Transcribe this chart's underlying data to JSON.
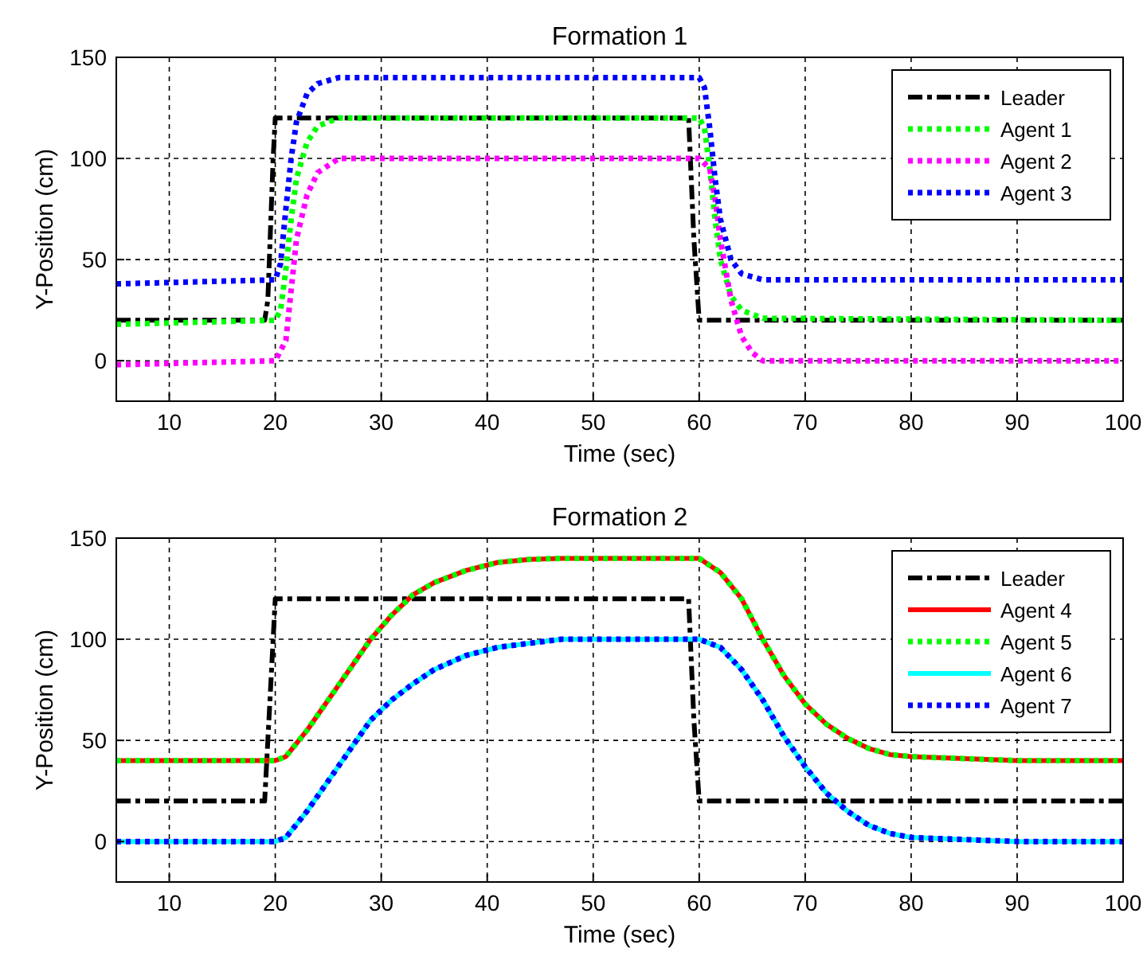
{
  "chart_data": [
    {
      "type": "line",
      "title": "Formation 1",
      "xlabel": "Time (sec)",
      "ylabel": "Y-Position (cm)",
      "xlim": [
        5,
        100
      ],
      "ylim": [
        -20,
        150
      ],
      "xticks": [
        10,
        20,
        30,
        40,
        50,
        60,
        70,
        80,
        90,
        100
      ],
      "yticks": [
        0,
        50,
        100,
        150
      ],
      "grid": true,
      "legend": "top right",
      "series": [
        {
          "name": "Leader",
          "color": "#000000",
          "line_style": "dashdot",
          "x": [
            5,
            19,
            19.3,
            19.8,
            20,
            59,
            59.5,
            60,
            100
          ],
          "values": [
            20,
            20,
            30,
            100,
            120,
            120,
            60,
            20,
            20
          ]
        },
        {
          "name": "Agent 1",
          "color": "#00ff00",
          "line_style": "dotted",
          "x": [
            5,
            20,
            20.5,
            21,
            21.5,
            22,
            23,
            24,
            26,
            60,
            60.5,
            61,
            61.5,
            62,
            63,
            64,
            66,
            100
          ],
          "values": [
            18,
            20,
            25,
            45,
            70,
            90,
            108,
            116,
            120,
            120,
            115,
            95,
            70,
            50,
            32,
            25,
            21,
            20
          ]
        },
        {
          "name": "Agent 2",
          "color": "#ff00ff",
          "line_style": "dotted",
          "x": [
            5,
            20,
            21,
            21.5,
            22,
            23,
            24,
            26,
            60,
            61,
            61.5,
            62,
            63,
            64,
            65,
            66,
            100
          ],
          "values": [
            -2,
            0,
            10,
            35,
            60,
            82,
            93,
            100,
            100,
            95,
            80,
            60,
            30,
            12,
            4,
            0,
            0
          ]
        },
        {
          "name": "Agent 3",
          "color": "#0000ff",
          "line_style": "dotted",
          "x": [
            5,
            20,
            20.5,
            21,
            21.5,
            22,
            23,
            24,
            26,
            60,
            60.5,
            61,
            61.5,
            62,
            63,
            64,
            66,
            100
          ],
          "values": [
            38,
            40,
            48,
            75,
            100,
            118,
            132,
            137,
            140,
            140,
            135,
            115,
            90,
            70,
            50,
            43,
            40,
            40
          ]
        }
      ]
    },
    {
      "type": "line",
      "title": "Formation 2",
      "xlabel": "Time (sec)",
      "ylabel": "Y-Position (cm)",
      "xlim": [
        5,
        100
      ],
      "ylim": [
        -20,
        150
      ],
      "xticks": [
        10,
        20,
        30,
        40,
        50,
        60,
        70,
        80,
        90,
        100
      ],
      "yticks": [
        0,
        50,
        100,
        150
      ],
      "grid": true,
      "legend": "top right",
      "series": [
        {
          "name": "Leader",
          "color": "#000000",
          "line_style": "dashdot",
          "x": [
            5,
            19,
            19.3,
            19.8,
            20,
            59,
            59.5,
            60,
            100
          ],
          "values": [
            20,
            20,
            50,
            100,
            120,
            120,
            60,
            20,
            20
          ]
        },
        {
          "name": "Agent 4",
          "color": "#ff0000",
          "line_style": "solid",
          "x": [
            5,
            20,
            21,
            23,
            25,
            27,
            29,
            31,
            33,
            35,
            38,
            41,
            44,
            47,
            60,
            62,
            64,
            66,
            68,
            70,
            72,
            74,
            76,
            78,
            80,
            85,
            90,
            100
          ],
          "values": [
            40,
            40,
            42,
            55,
            70,
            85,
            100,
            112,
            122,
            128,
            134,
            138,
            139.5,
            140,
            140,
            133,
            120,
            100,
            82,
            68,
            58,
            51,
            46,
            43,
            42,
            41,
            40,
            40
          ]
        },
        {
          "name": "Agent 5",
          "color": "#00ff00",
          "line_style": "dotted",
          "x": [
            5,
            20,
            21,
            23,
            25,
            27,
            29,
            31,
            33,
            35,
            38,
            41,
            44,
            47,
            60,
            62,
            64,
            66,
            68,
            70,
            72,
            74,
            76,
            78,
            80,
            85,
            90,
            100
          ],
          "values": [
            40,
            40,
            42,
            55,
            70,
            85,
            100,
            112,
            122,
            128,
            134,
            138,
            139.5,
            140,
            140,
            133,
            120,
            100,
            82,
            68,
            58,
            51,
            46,
            43,
            42,
            41,
            40,
            40
          ]
        },
        {
          "name": "Agent 6",
          "color": "#00ffff",
          "line_style": "solid",
          "x": [
            5,
            20,
            21,
            23,
            25,
            27,
            29,
            31,
            33,
            35,
            38,
            41,
            44,
            47,
            60,
            62,
            64,
            66,
            68,
            70,
            72,
            74,
            76,
            78,
            80,
            85,
            90,
            100
          ],
          "values": [
            0,
            0,
            2,
            15,
            30,
            45,
            60,
            70,
            78,
            85,
            92,
            96,
            98,
            100,
            100,
            96,
            85,
            70,
            52,
            37,
            24,
            15,
            8,
            4,
            2,
            1,
            0,
            0
          ]
        },
        {
          "name": "Agent 7",
          "color": "#0000ff",
          "line_style": "dotted",
          "x": [
            5,
            20,
            21,
            23,
            25,
            27,
            29,
            31,
            33,
            35,
            38,
            41,
            44,
            47,
            60,
            62,
            64,
            66,
            68,
            70,
            72,
            74,
            76,
            78,
            80,
            85,
            90,
            100
          ],
          "values": [
            0,
            0,
            2,
            15,
            30,
            45,
            60,
            70,
            78,
            85,
            92,
            96,
            98,
            100,
            100,
            96,
            85,
            70,
            52,
            37,
            24,
            15,
            8,
            4,
            2,
            1,
            0,
            0
          ]
        }
      ]
    }
  ]
}
